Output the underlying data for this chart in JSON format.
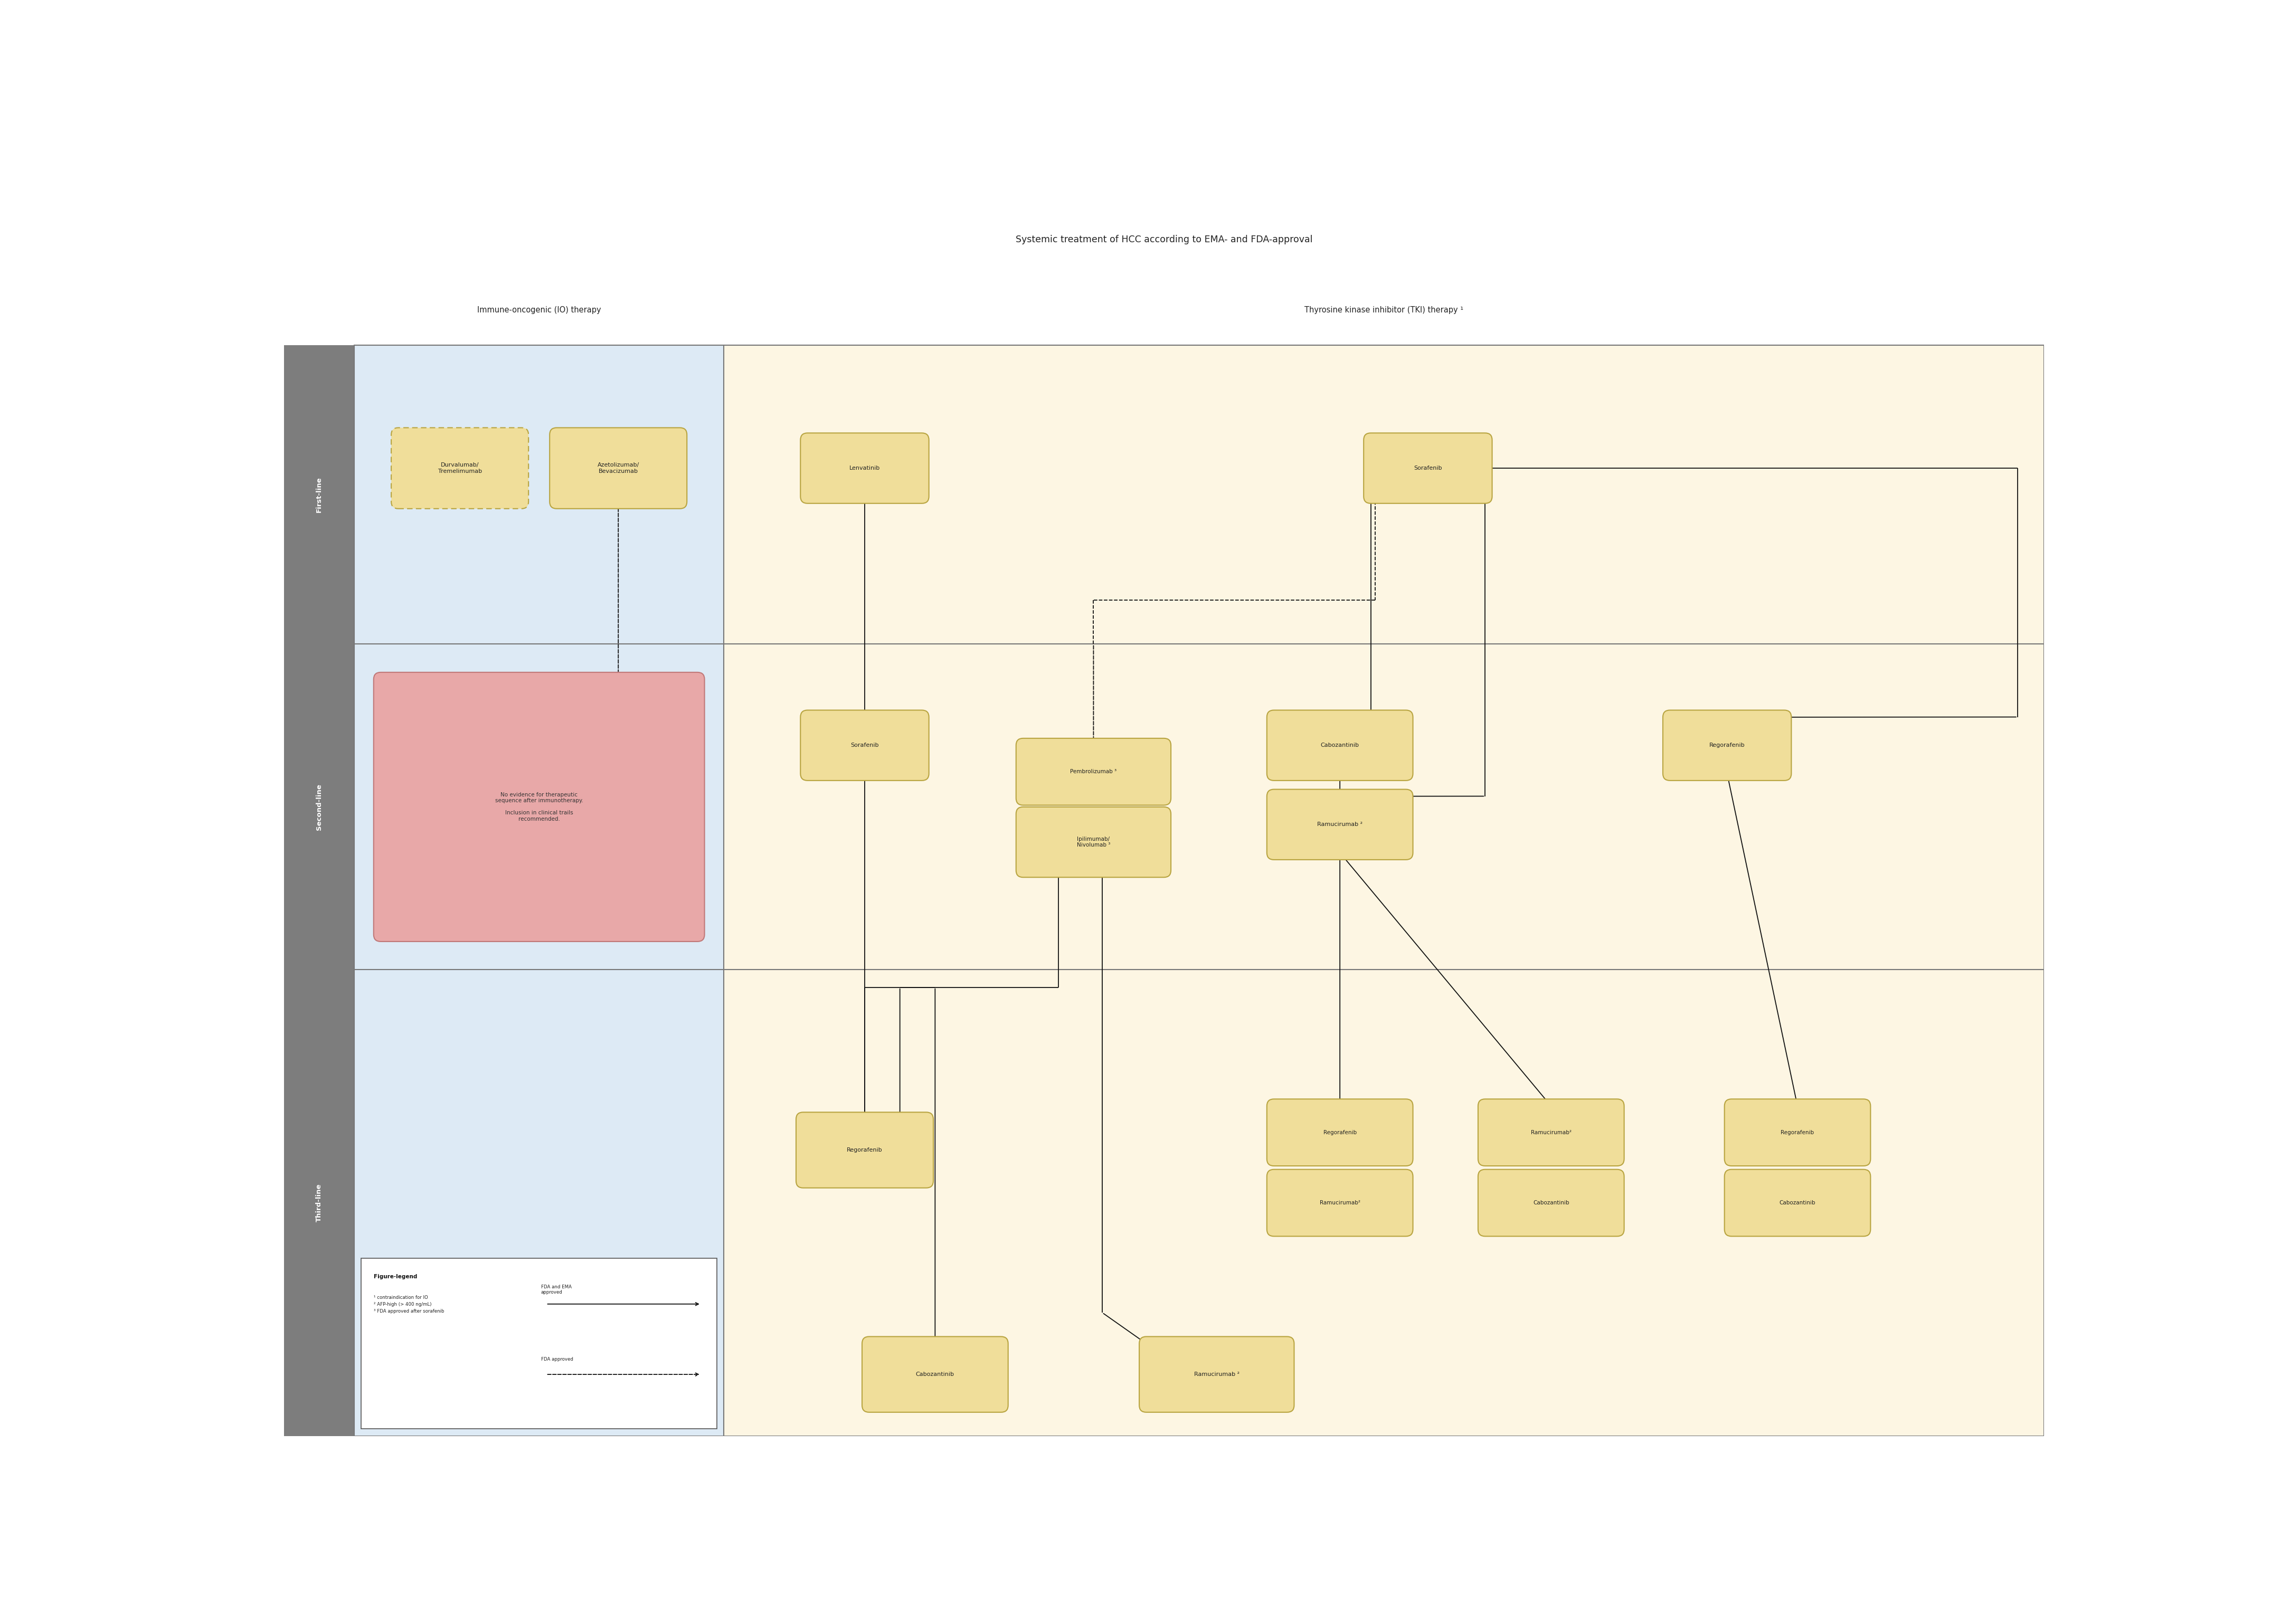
{
  "title": "Systemic treatment of HCC according to EMA- and FDA-approval",
  "col_io": "Immune-oncogenic (IO) therapy",
  "col_tki": "Thyrosine kinase inhibitor (TKI) therapy ¹",
  "row_labels": [
    "First-line",
    "Second-line",
    "Third-line"
  ],
  "bg_white": "#ffffff",
  "bg_io": "#ddeaf5",
  "bg_tki": "#fdf6e3",
  "bg_sidebar": "#7d7d7d",
  "box_fill": "#f0de9a",
  "box_edge": "#b8a440",
  "pink_fill": "#e8a8a8",
  "pink_edge": "#c07878",
  "arrow_color": "#111111",
  "divider": "#777777",
  "text_dark": "#222222"
}
